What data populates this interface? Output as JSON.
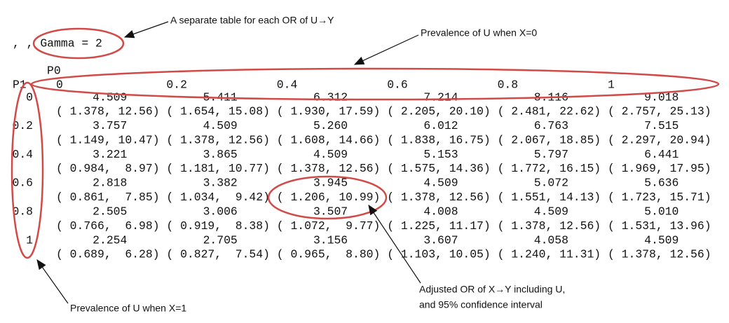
{
  "header": {
    "title": ", , Gamma = 2",
    "col_dim": "P0",
    "row_dim": "P1"
  },
  "table": {
    "columns": [
      "0",
      "0.2",
      "0.4",
      "0.6",
      "0.8",
      "1"
    ],
    "rows": [
      {
        "label": "0",
        "estimates": [
          "4.509",
          "5.411",
          "6.312",
          "7.214",
          "8.116",
          "9.018"
        ],
        "intervals": [
          "( 1.378, 12.56)",
          "( 1.654, 15.08)",
          "( 1.930, 17.59)",
          "( 2.205, 20.10)",
          "( 2.481, 22.62)",
          "( 2.757, 25.13)"
        ]
      },
      {
        "label": "0.2",
        "estimates": [
          "3.757",
          "4.509",
          "5.260",
          "6.012",
          "6.763",
          "7.515"
        ],
        "intervals": [
          "( 1.149, 10.47)",
          "( 1.378, 12.56)",
          "( 1.608, 14.66)",
          "( 1.838, 16.75)",
          "( 2.067, 18.85)",
          "( 2.297, 20.94)"
        ]
      },
      {
        "label": "0.4",
        "estimates": [
          "3.221",
          "3.865",
          "4.509",
          "5.153",
          "5.797",
          "6.441"
        ],
        "intervals": [
          "( 0.984,  8.97)",
          "( 1.181, 10.77)",
          "( 1.378, 12.56)",
          "( 1.575, 14.36)",
          "( 1.772, 16.15)",
          "( 1.969, 17.95)"
        ]
      },
      {
        "label": "0.6",
        "estimates": [
          "2.818",
          "3.382",
          "3.945",
          "4.509",
          "5.072",
          "5.636"
        ],
        "intervals": [
          "( 0.861,  7.85)",
          "( 1.034,  9.42)",
          "( 1.206, 10.99)",
          "( 1.378, 12.56)",
          "( 1.551, 14.13)",
          "( 1.723, 15.71)"
        ]
      },
      {
        "label": "0.8",
        "estimates": [
          "2.505",
          "3.006",
          "3.507",
          "4.008",
          "4.509",
          "5.010"
        ],
        "intervals": [
          "( 0.766,  6.98)",
          "( 0.919,  8.38)",
          "( 1.072,  9.77)",
          "( 1.225, 11.17)",
          "( 1.378, 12.56)",
          "( 1.531, 13.96)"
        ]
      },
      {
        "label": "1",
        "estimates": [
          "2.254",
          "2.705",
          "3.156",
          "3.607",
          "4.058",
          "4.509"
        ],
        "intervals": [
          "( 0.689,  6.28)",
          "( 0.827,  7.54)",
          "( 0.965,  8.80)",
          "( 1.103, 10.05)",
          "( 1.240, 11.31)",
          "( 1.378, 12.56)"
        ]
      }
    ]
  },
  "annotations": {
    "gamma": "A separate table for each OR of U→Y",
    "p0": "Prevalence of U when X=0",
    "adjusted": [
      "Adjusted OR of X→Y including U,",
      "and 95% confidence interval"
    ],
    "p1": "Prevalence of U when X=1"
  }
}
